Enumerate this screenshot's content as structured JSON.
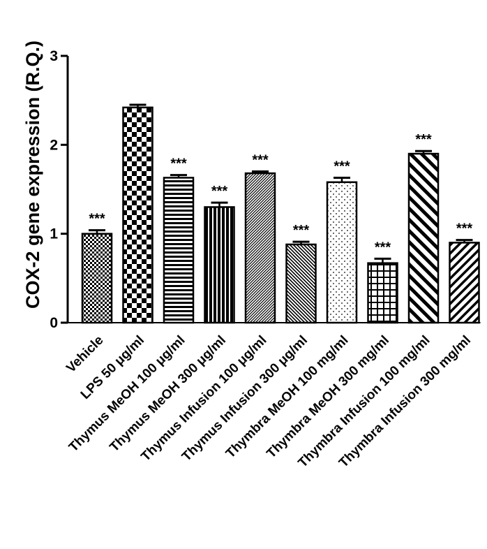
{
  "chart_data": {
    "type": "bar",
    "title": "",
    "xlabel": "",
    "ylabel": "COX-2 gene expression (R.Q.)",
    "ylim": [
      0,
      3
    ],
    "yticks": [
      "0",
      "1",
      "2",
      "3"
    ],
    "grid": false,
    "categories": [
      "Vehicle",
      "LPS 50 μg/ml",
      "Thymus MeOH 100 μg/ml",
      "Thymus MeOH 300 μg/ml",
      "Thymus Infusion 100 μg/ml",
      "Thymus Infusion 300 μg/ml",
      "Thymbra MeOH 100 mg/ml",
      "Thymbra MeOH 300 mg/ml",
      "Thymbra Infusion 100 mg/ml",
      "Thymbra Infusion 300 mg/ml"
    ],
    "values": [
      1.0,
      2.42,
      1.63,
      1.3,
      1.68,
      0.88,
      1.58,
      0.67,
      1.9,
      0.9
    ],
    "errors": [
      0.04,
      0.03,
      0.03,
      0.05,
      0.02,
      0.03,
      0.05,
      0.05,
      0.03,
      0.03
    ],
    "significance": [
      "***",
      "",
      "***",
      "***",
      "***",
      "***",
      "***",
      "***",
      "***",
      "***"
    ],
    "patterns": [
      "fine-checker",
      "checker",
      "horizontal-lines",
      "vertical-lines",
      "diagonal-dense",
      "diagonal-fine",
      "dots",
      "grid",
      "diagonal-wide",
      "diagonal-medium"
    ]
  }
}
